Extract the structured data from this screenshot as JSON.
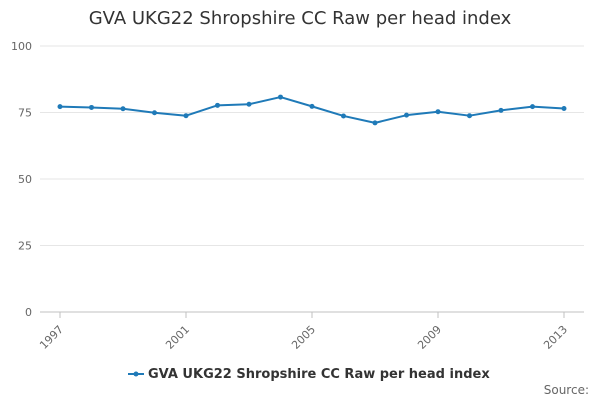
{
  "chart_data": {
    "type": "line",
    "title": "GVA UKG22 Shropshire CC Raw per head index",
    "xlabel": "",
    "ylabel": "",
    "x": [
      1997,
      1998,
      1999,
      2000,
      2001,
      2002,
      2003,
      2004,
      2005,
      2006,
      2007,
      2008,
      2009,
      2010,
      2011,
      2012,
      2013
    ],
    "x_tick_labels": [
      "1997",
      "2001",
      "2005",
      "2009",
      "2013"
    ],
    "y_tick_labels": [
      "0",
      "25",
      "50",
      "75",
      "100"
    ],
    "xlim": [
      1997,
      2013
    ],
    "ylim": [
      0,
      100
    ],
    "grid": "horizontal",
    "legend_position": "bottom",
    "series": [
      {
        "name": "GVA UKG22 Shropshire CC Raw per head index",
        "color": "#1f7ab8",
        "values": [
          77.2,
          76.9,
          76.4,
          74.9,
          73.8,
          77.7,
          78.1,
          80.8,
          77.3,
          73.7,
          71.1,
          74.0,
          75.3,
          73.8,
          75.8,
          77.2,
          76.5
        ]
      }
    ]
  },
  "credits": "Source:"
}
